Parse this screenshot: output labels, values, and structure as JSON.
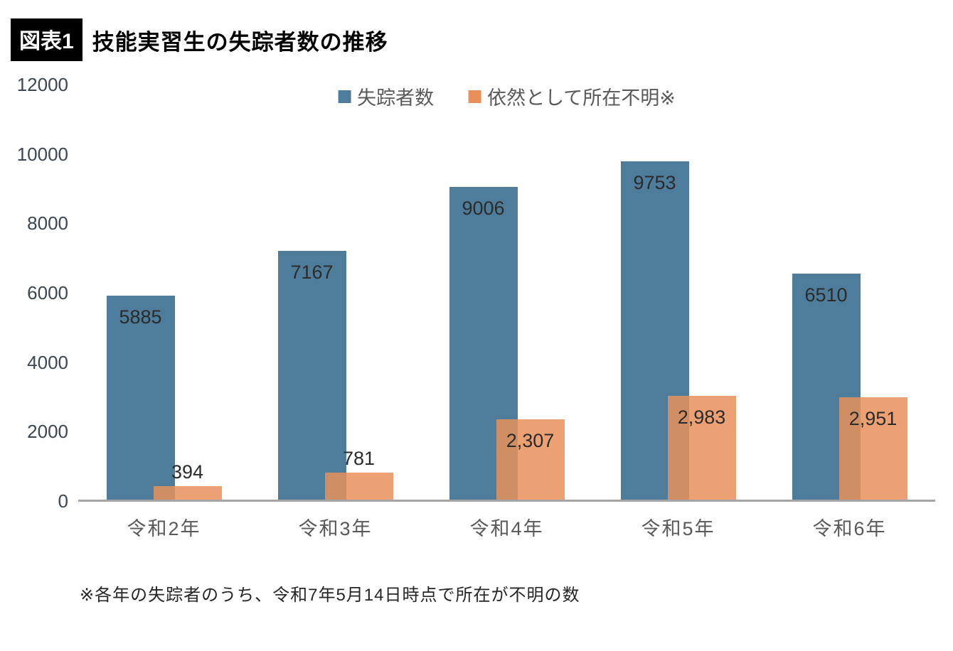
{
  "header": {
    "badge": "図表1",
    "title": "技能実習生の失踪者数の推移"
  },
  "footnote": "※各年の失踪者のうち、令和7年5月14日時点で所在が不明の数",
  "chart_data": {
    "type": "bar",
    "title": "技能実習生の失踪者数の推移",
    "categories": [
      "令和2年",
      "令和3年",
      "令和4年",
      "令和5年",
      "令和6年"
    ],
    "series": [
      {
        "name": "失踪者数",
        "color": "#4e7d9b",
        "values": [
          5885,
          7167,
          9006,
          9753,
          6510
        ],
        "labels": [
          "5885",
          "7167",
          "9006",
          "9753",
          "6510"
        ]
      },
      {
        "name": "依然として所在不明※",
        "color": "#e8905a",
        "fill": "rgba(232, 144, 90, 0.85)",
        "values": [
          394,
          781,
          2307,
          2983,
          2951
        ],
        "labels": [
          "394",
          "781",
          "2,307",
          "2,983",
          "2,951"
        ]
      }
    ],
    "xlabel": "",
    "ylabel": "",
    "ylim": [
      0,
      12000
    ],
    "yticks": [
      0,
      2000,
      4000,
      6000,
      8000,
      10000,
      12000
    ],
    "grid": false,
    "legend_position": "top-center",
    "axis_line_color": "#a6a6a6"
  }
}
